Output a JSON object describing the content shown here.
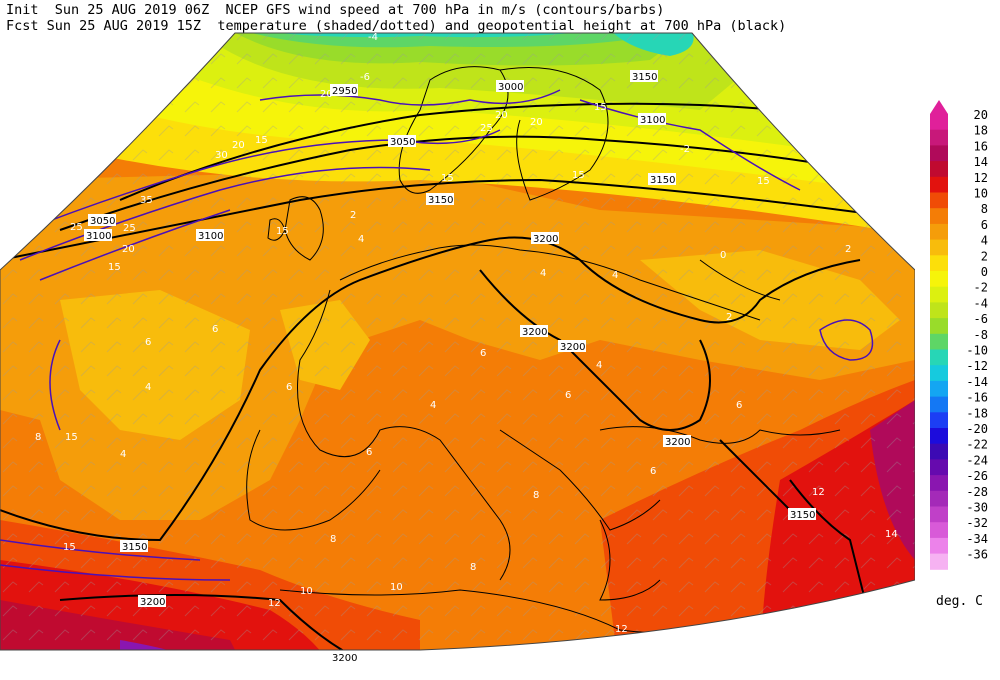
{
  "header": {
    "line1": "Init  Sun 25 AUG 2019 06Z  NCEP GFS wind speed at 700 hPa in m/s (contours/barbs)",
    "line2": "Fcst Sun 25 AUG 2019 15Z  temperature (shaded/dotted) and geopotential height at 700 hPa (black)"
  },
  "colorbar": {
    "levels": [
      "20",
      "18",
      "16",
      "14",
      "12",
      "10",
      "8",
      "6",
      "4",
      "2",
      "0",
      "-2",
      "-4",
      "-6",
      "-8",
      "-10",
      "-12",
      "-14",
      "-16",
      "-18",
      "-20",
      "-22",
      "-24",
      "-26",
      "-28",
      "-30",
      "-32",
      "-34",
      "-36"
    ],
    "colors": [
      "#e0209a",
      "#c8187a",
      "#b00a5a",
      "#c00a30",
      "#e2120e",
      "#f04c06",
      "#f47d06",
      "#f59d0a",
      "#f8bc0c",
      "#fcdf0a",
      "#f6f40a",
      "#dcf010",
      "#bfe41a",
      "#99dc2a",
      "#5ed666",
      "#27d6b6",
      "#16cade",
      "#14a6f2",
      "#1478f4",
      "#1c3ef4",
      "#1c0cdc",
      "#3c0ab4",
      "#660aae",
      "#8a16b0",
      "#a42ab8",
      "#c040c8",
      "#d85ad8",
      "#ec82ea",
      "#f6b2f2"
    ],
    "unit": "deg. C"
  },
  "contour_labels": {
    "height": [
      "3050",
      "3100",
      "3150",
      "3200",
      "3000",
      "2950",
      "3100",
      "3150",
      "3200",
      "3200",
      "3200",
      "3150",
      "3150",
      "3200",
      "3050",
      "3100",
      "3150",
      "3200"
    ],
    "wind": [
      "15",
      "15",
      "20",
      "20",
      "25",
      "30",
      "35",
      "15",
      "15",
      "20",
      "25",
      "20",
      "15",
      "15",
      "15",
      "15",
      "25",
      "20",
      "15"
    ],
    "temperature": [
      "4",
      "6",
      "8",
      "4",
      "6",
      "2",
      "4",
      "6",
      "8",
      "10",
      "12",
      "12",
      "14",
      "-2",
      "-4",
      "-6",
      "0",
      "2",
      "4",
      "6",
      "4",
      "6",
      "8",
      "6",
      "8",
      "10",
      "12",
      "6",
      "4",
      "8",
      "6",
      "4",
      "2"
    ]
  },
  "colors": {
    "height_contour": "#000000",
    "wind_contour": "#4a10b8",
    "coastline": "#000000"
  }
}
